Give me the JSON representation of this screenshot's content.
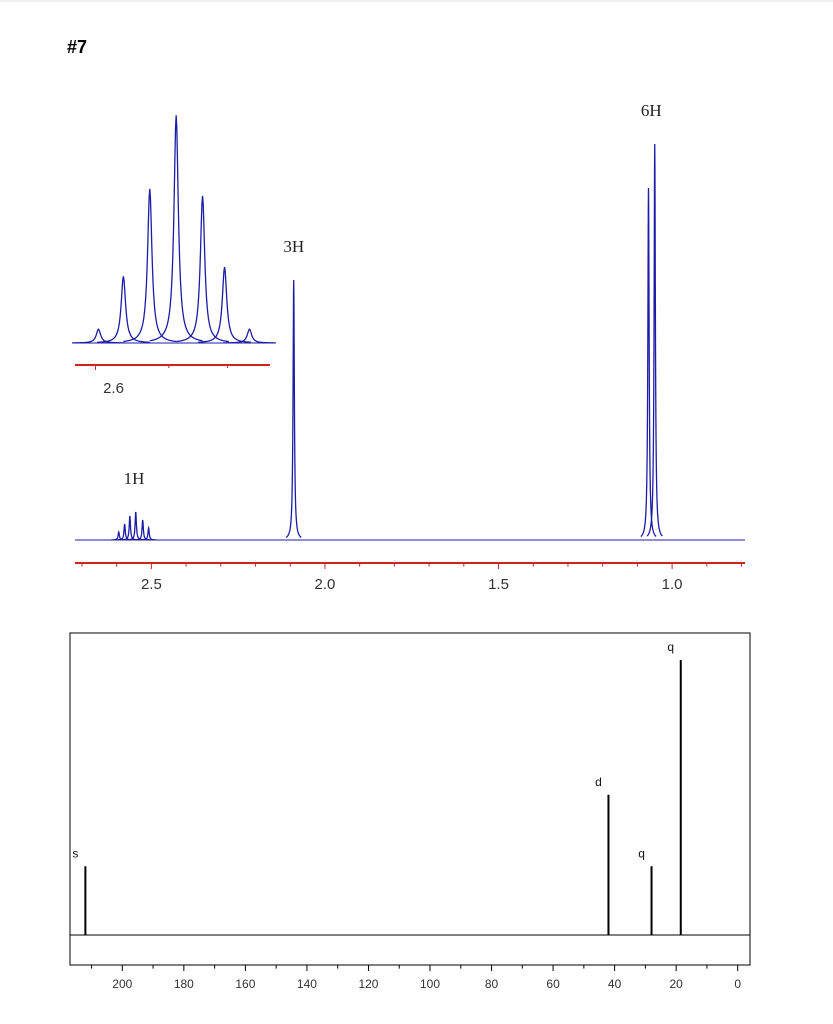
{
  "title": "#7",
  "chart_data": [
    {
      "type": "spectrum",
      "x": [
        2.594,
        2.577,
        2.562,
        2.545,
        2.525,
        2.508,
        2.09,
        1.068,
        1.05
      ],
      "values": [
        2,
        4,
        6,
        7,
        5,
        3,
        65,
        88,
        99
      ],
      "color": "#1c1ca8",
      "axis_color": "#cc2222",
      "xlim": [
        2.72,
        0.79
      ],
      "ylim": [
        0,
        100
      ],
      "xticks": [
        2.5,
        {
          "value": 2,
          "label": "2.0"
        },
        1.5,
        {
          "value": 1,
          "label": "1.0"
        }
      ],
      "minor_xticks": [
        2.7,
        2.6,
        2.4,
        2.3,
        2.2,
        2.1,
        1.9,
        1.8,
        1.7,
        1.6,
        1.4,
        1.3,
        1.2,
        1.1,
        0.9,
        0.8
      ],
      "annotations": [
        {
          "text": "1H",
          "x": 2.55
        },
        {
          "text": "3H",
          "x": 2.09
        },
        {
          "text": "6H",
          "x": 1.06
        }
      ],
      "inset": {
        "x": [
          2.598,
          2.581,
          2.563,
          2.545,
          2.527,
          2.512,
          2.495
        ],
        "values": [
          6,
          29,
          67,
          99,
          64,
          33,
          6
        ],
        "xlim": [
          2.614,
          2.481
        ],
        "ylim": [
          0,
          100
        ],
        "xticks": [
          2.6
        ],
        "minor_xticks": [
          2.55,
          2.51
        ]
      }
    },
    {
      "type": "stick",
      "x": [
        212,
        42,
        28,
        18.5
      ],
      "values": [
        25,
        51,
        25,
        100
      ],
      "labels": [
        "s",
        "d",
        "q",
        "q"
      ],
      "color": "#000000",
      "xlim": [
        217,
        -4
      ],
      "ylim": [
        0,
        100
      ],
      "xticks": [
        200,
        180,
        160,
        140,
        120,
        100,
        80,
        60,
        40,
        20,
        0
      ],
      "minor_xticks": [
        210,
        190,
        170,
        150,
        130,
        110,
        90,
        70,
        50,
        30,
        10
      ]
    }
  ]
}
